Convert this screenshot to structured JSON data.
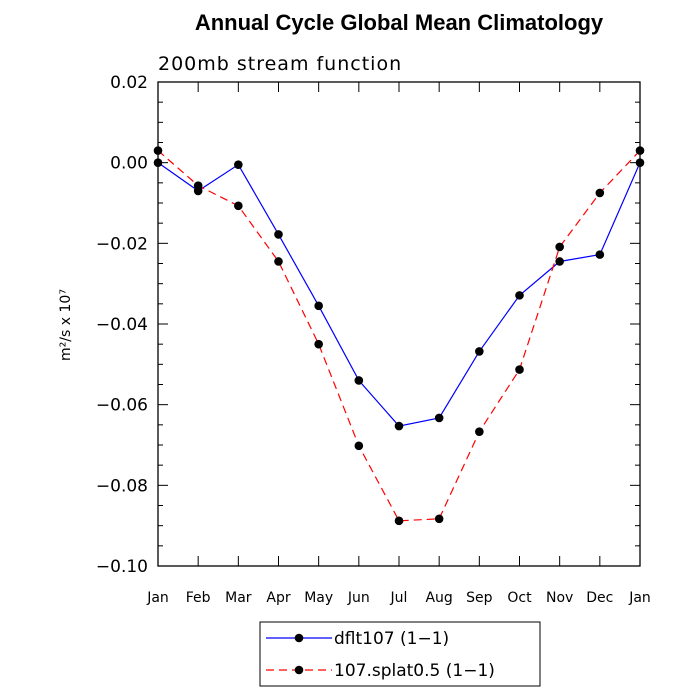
{
  "chart_data": {
    "type": "line",
    "title": "Annual Cycle Global Mean Climatology",
    "subtitle": "200mb stream function",
    "ylabel": "m²/s x 10⁷",
    "xlabel": "",
    "ylim": [
      -0.1,
      0.02
    ],
    "yticks": [
      "0.02",
      "0.00",
      "−0.02",
      "−0.04",
      "−0.06",
      "−0.08",
      "−0.10"
    ],
    "ytick_values": [
      0.02,
      0.0,
      -0.02,
      -0.04,
      -0.06,
      -0.08,
      -0.1
    ],
    "categories": [
      "Jan",
      "Feb",
      "Mar",
      "Apr",
      "May",
      "Jun",
      "Jul",
      "Aug",
      "Sep",
      "Oct",
      "Nov",
      "Dec",
      "Jan"
    ],
    "series": [
      {
        "name": "dflt107 (1−1)",
        "color": "#0000ff",
        "dash": "solid",
        "values": [
          0.0,
          -0.007,
          -0.0005,
          -0.0178,
          -0.0355,
          -0.054,
          -0.0653,
          -0.0633,
          -0.0468,
          -0.0329,
          -0.0245,
          -0.0228,
          0.0
        ]
      },
      {
        "name": "107.splat0.5 (1−1)",
        "color": "#ff0000",
        "dash": "dashed",
        "values": [
          0.003,
          -0.0057,
          -0.0107,
          -0.0245,
          -0.045,
          -0.0702,
          -0.0888,
          -0.0883,
          -0.0667,
          -0.0513,
          -0.0209,
          -0.0075,
          0.003
        ]
      }
    ],
    "grid": false,
    "legend_position": "bottom-center"
  }
}
